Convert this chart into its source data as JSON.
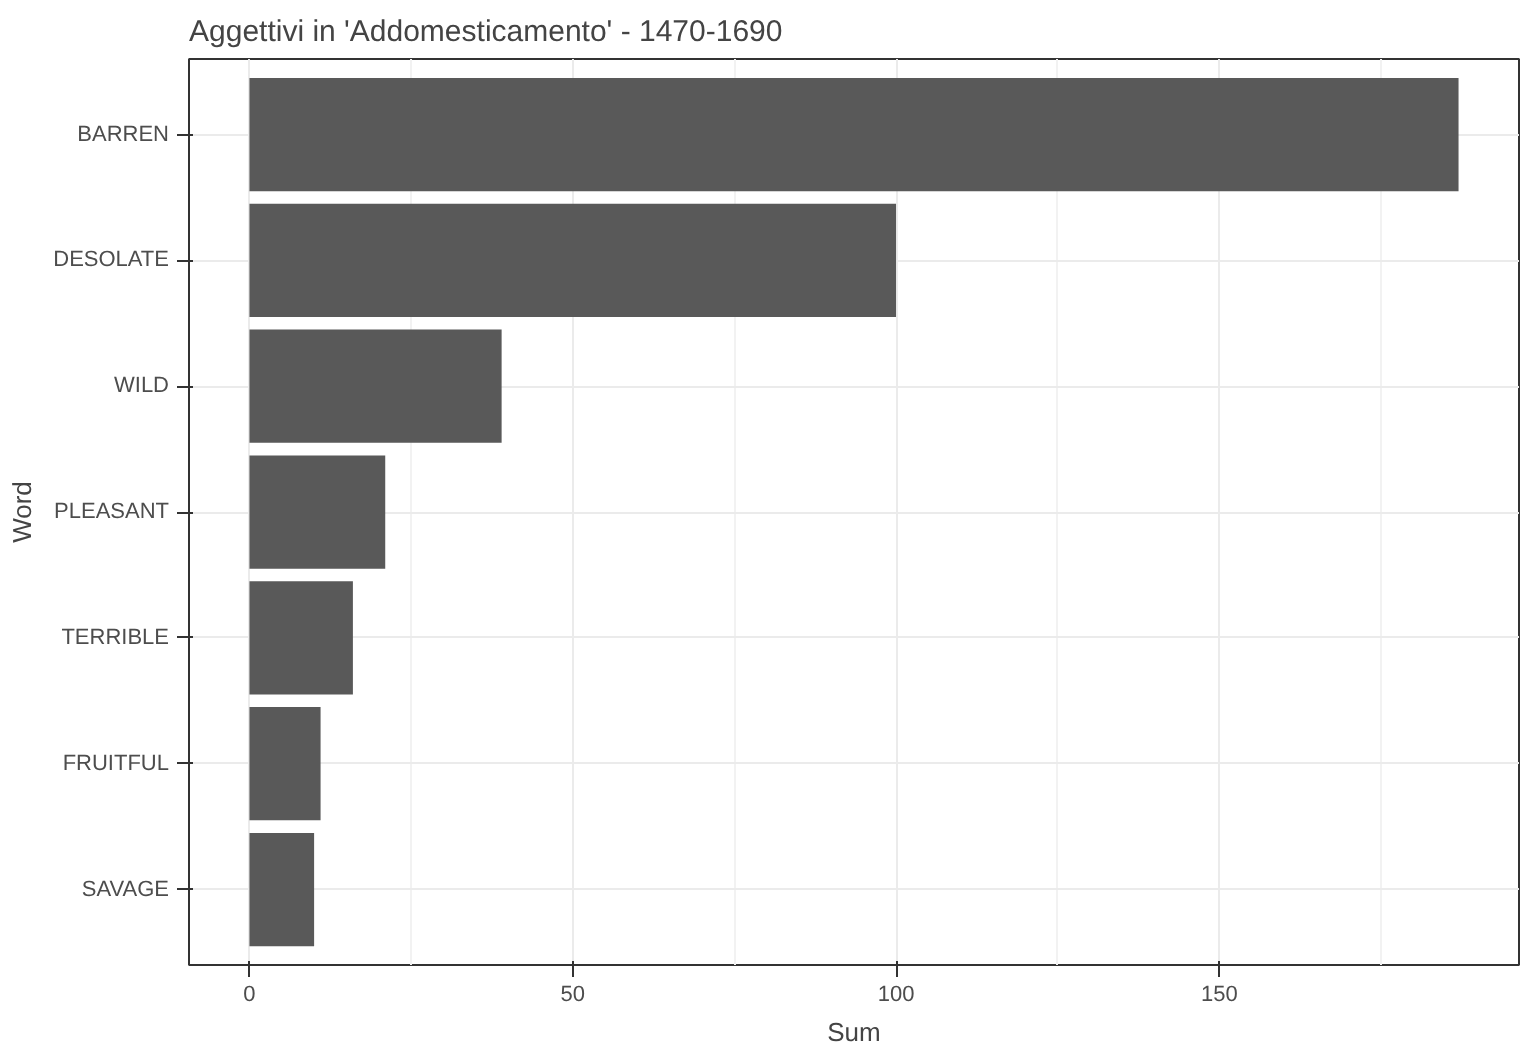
{
  "chart_data": {
    "type": "bar",
    "orientation": "horizontal",
    "title": "Aggettivi in 'Addomesticamento' - 1470-1690",
    "xlabel": "Sum",
    "ylabel": "Word",
    "categories": [
      "BARREN",
      "DESOLATE",
      "WILD",
      "PLEASANT",
      "TERRIBLE",
      "FRUITFUL",
      "SAVAGE"
    ],
    "values": [
      187,
      100,
      39,
      21,
      16,
      11,
      10
    ],
    "color": "#595959",
    "xlim": [
      -9.35,
      196.35
    ],
    "xticks": [
      0,
      50,
      100,
      150
    ],
    "grid": true
  }
}
